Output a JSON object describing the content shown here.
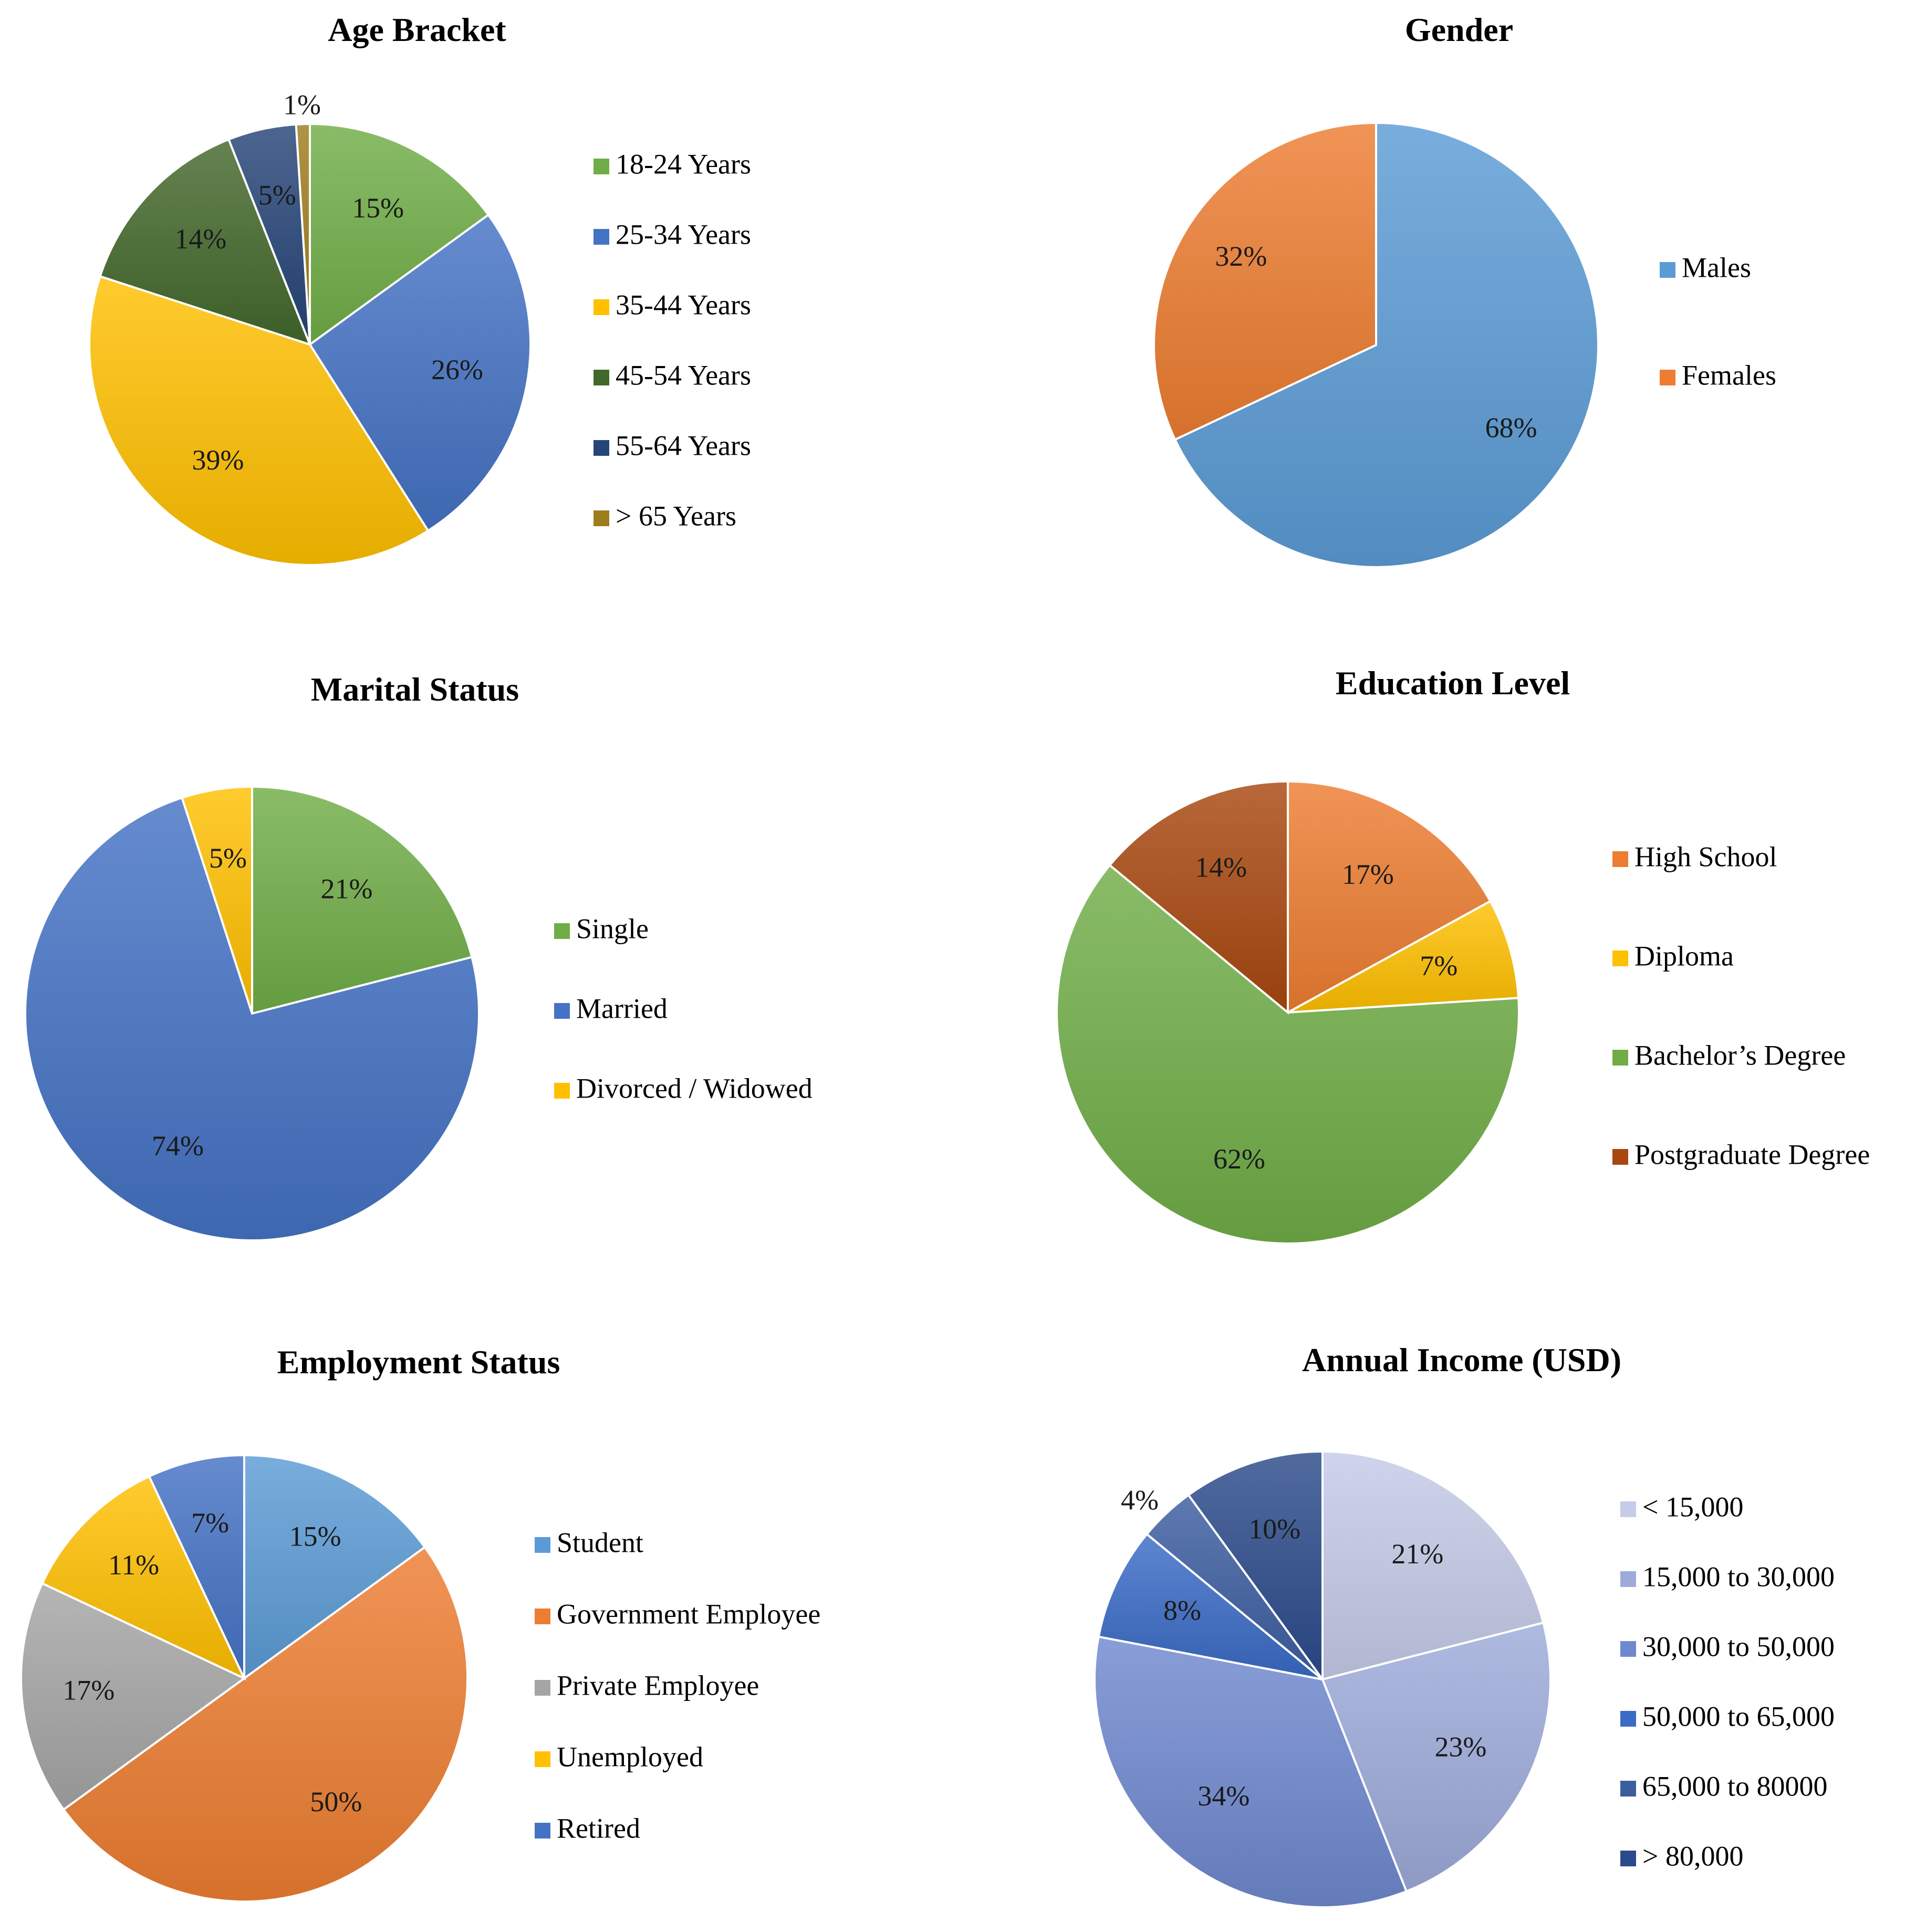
{
  "chart_data": [
    {
      "type": "pie",
      "title": "Age Bracket",
      "slices": [
        {
          "label": "18-24 Years",
          "value": 15,
          "color": "#70ad47",
          "pct": "15%"
        },
        {
          "label": "25-34 Years",
          "value": 26,
          "color": "#4472c4",
          "pct": "26%"
        },
        {
          "label": "35-44 Years",
          "value": 39,
          "color": "#ffc000",
          "pct": "39%"
        },
        {
          "label": "45-54 Years",
          "value": 14,
          "color": "#43682b",
          "pct": "14%"
        },
        {
          "label": "55-64 Years",
          "value": 5,
          "color": "#264478",
          "pct": "5%"
        },
        {
          "label": "> 65 Years",
          "value": 1,
          "color": "#9e7d1c",
          "pct": "1%"
        }
      ]
    },
    {
      "type": "pie",
      "title": "Gender",
      "slices": [
        {
          "label": "Males",
          "value": 68,
          "color": "#5b9bd5",
          "pct": "68%"
        },
        {
          "label": "Females",
          "value": 32,
          "color": "#ed7d31",
          "pct": "32%"
        }
      ]
    },
    {
      "type": "pie",
      "title": "Marital Status",
      "slices": [
        {
          "label": "Single",
          "value": 21,
          "color": "#70ad47",
          "pct": "21%"
        },
        {
          "label": "Married",
          "value": 74,
          "color": "#4472c4",
          "pct": "74%"
        },
        {
          "label": "Divorced / Widowed",
          "value": 5,
          "color": "#ffc000",
          "pct": "5%"
        }
      ]
    },
    {
      "type": "pie",
      "title": "Education Level",
      "slices": [
        {
          "label": "High School",
          "value": 17,
          "color": "#ed7d31",
          "pct": "17%"
        },
        {
          "label": "Diploma",
          "value": 7,
          "color": "#ffc000",
          "pct": "7%"
        },
        {
          "label": "Bachelor’s Degree",
          "value": 62,
          "color": "#70ad47",
          "pct": "62%"
        },
        {
          "label": "Postgraduate Degree",
          "value": 14,
          "color": "#a9470f",
          "pct": "14%"
        }
      ]
    },
    {
      "type": "pie",
      "title": "Employment Status",
      "slices": [
        {
          "label": "Student",
          "value": 15,
          "color": "#5b9bd5",
          "pct": "15%"
        },
        {
          "label": "Government Employee",
          "value": 50,
          "color": "#ed7d31",
          "pct": "50%"
        },
        {
          "label": "Private Employee",
          "value": 17,
          "color": "#a5a5a5",
          "pct": "17%"
        },
        {
          "label": "Unemployed",
          "value": 11,
          "color": "#ffc000",
          "pct": "11%"
        },
        {
          "label": "Retired",
          "value": 7,
          "color": "#4472c4",
          "pct": "7%"
        }
      ]
    },
    {
      "type": "pie",
      "title": "Annual Income (USD)",
      "slices": [
        {
          "label": "< 15,000",
          "value": 21,
          "color": "#c5cbe8",
          "pct": "21%"
        },
        {
          "label": "15,000 to 30,000",
          "value": 23,
          "color": "#9eabda",
          "pct": "23%"
        },
        {
          "label": "30,000 to 50,000",
          "value": 34,
          "color": "#6f89cf",
          "pct": "34%"
        },
        {
          "label": "50,000 to 65,000",
          "value": 8,
          "color": "#3a6bc6",
          "pct": "8%"
        },
        {
          "label": "65,000 to 80000",
          "value": 4,
          "color": "#3c5da0",
          "pct": "4%"
        },
        {
          "label": "> 80,000",
          "value": 10,
          "color": "#2b4a8a",
          "pct": "10%"
        }
      ]
    }
  ]
}
